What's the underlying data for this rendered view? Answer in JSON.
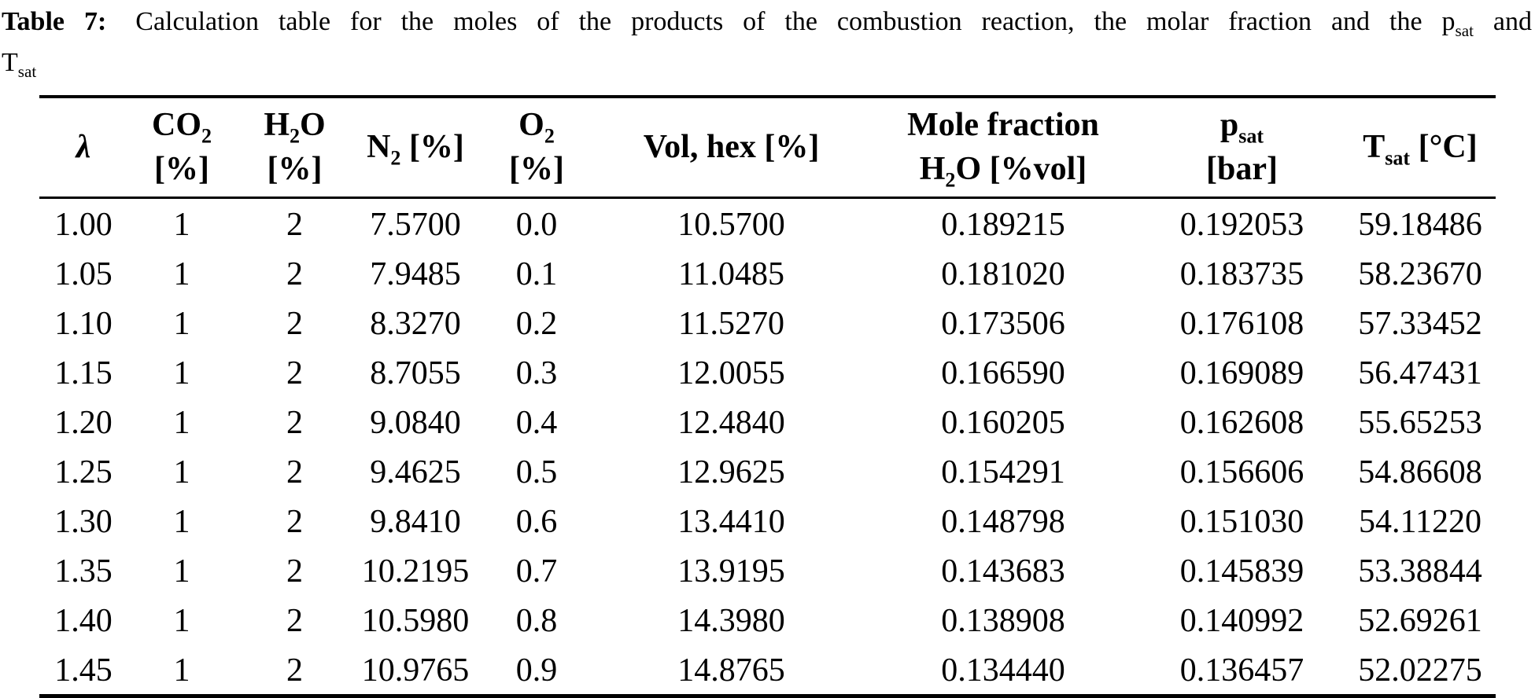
{
  "caption": {
    "label": "Table 7:",
    "text": "Calculation table for the moles of the products of the combustion reaction, the molar fraction and the",
    "psat": {
      "base": "p",
      "sub": "sat"
    },
    "conj": "and",
    "tsat": {
      "base": "T",
      "sub": "sat"
    }
  },
  "table": {
    "headers": {
      "lambda": "λ",
      "co2": {
        "pre": "CO",
        "sub": "2",
        "unit": "[%]"
      },
      "h2o": {
        "pre": "H",
        "sub": "2",
        "post": "O",
        "unit": "[%]"
      },
      "n2": {
        "pre": "N",
        "sub": "2",
        "post": " [%]"
      },
      "o2": {
        "pre": "O",
        "sub": "2",
        "unit": "[%]"
      },
      "vol_hex": "Vol, hex [%]",
      "mole_fraction": {
        "line1": "Mole fraction",
        "pre": "H",
        "sub": "2",
        "post": "O [%vol]"
      },
      "psat": {
        "pre": "p",
        "sub": "sat",
        "unit": "[bar]"
      },
      "tsat": {
        "pre": "T",
        "sub": "sat",
        "post": " [°C]"
      }
    },
    "rows": [
      [
        "1.00",
        "1",
        "2",
        "7.5700",
        "0.0",
        "10.5700",
        "0.189215",
        "0.192053",
        "59.18486"
      ],
      [
        "1.05",
        "1",
        "2",
        "7.9485",
        "0.1",
        "11.0485",
        "0.181020",
        "0.183735",
        "58.23670"
      ],
      [
        "1.10",
        "1",
        "2",
        "8.3270",
        "0.2",
        "11.5270",
        "0.173506",
        "0.176108",
        "57.33452"
      ],
      [
        "1.15",
        "1",
        "2",
        "8.7055",
        "0.3",
        "12.0055",
        "0.166590",
        "0.169089",
        "56.47431"
      ],
      [
        "1.20",
        "1",
        "2",
        "9.0840",
        "0.4",
        "12.4840",
        "0.160205",
        "0.162608",
        "55.65253"
      ],
      [
        "1.25",
        "1",
        "2",
        "9.4625",
        "0.5",
        "12.9625",
        "0.154291",
        "0.156606",
        "54.86608"
      ],
      [
        "1.30",
        "1",
        "2",
        "9.8410",
        "0.6",
        "13.4410",
        "0.148798",
        "0.151030",
        "54.11220"
      ],
      [
        "1.35",
        "1",
        "2",
        "10.2195",
        "0.7",
        "13.9195",
        "0.143683",
        "0.145839",
        "53.38844"
      ],
      [
        "1.40",
        "1",
        "2",
        "10.5980",
        "0.8",
        "14.3980",
        "0.138908",
        "0.140992",
        "52.69261"
      ],
      [
        "1.45",
        "1",
        "2",
        "10.9765",
        "0.9",
        "14.8765",
        "0.134440",
        "0.136457",
        "52.02275"
      ]
    ]
  },
  "colors": {
    "text": "#000000",
    "background": "#ffffff",
    "rule": "#000000"
  }
}
